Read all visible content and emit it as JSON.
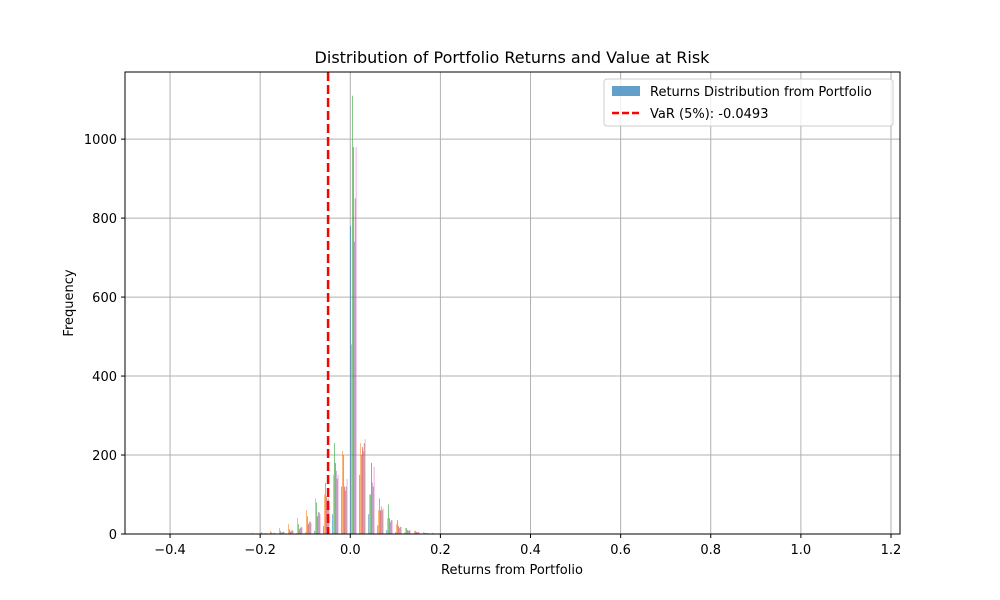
{
  "chart_data": {
    "type": "bar",
    "title": "Distribution of Portfolio Returns and Value at Risk",
    "xlabel": "Returns from Portfolio",
    "ylabel": "Frequency",
    "xlim": [
      -0.5,
      1.22
    ],
    "ylim": [
      0,
      1170
    ],
    "xticks": [
      -0.4,
      -0.2,
      0.0,
      0.2,
      0.4,
      0.6,
      0.8,
      1.0,
      1.2
    ],
    "xtick_labels": [
      "−0.4",
      "−0.2",
      "0.0",
      "0.2",
      "0.4",
      "0.6",
      "0.8",
      "1.0",
      "1.2"
    ],
    "yticks": [
      0,
      200,
      400,
      600,
      800,
      1000
    ],
    "ytick_labels": [
      "0",
      "200",
      "400",
      "600",
      "800",
      "1000"
    ],
    "grid": true,
    "legend_position": "top-right",
    "histogram": {
      "bin_edges": [
        -0.46,
        -0.44,
        -0.42,
        -0.4,
        -0.38,
        -0.36,
        -0.34,
        -0.32,
        -0.3,
        -0.28,
        -0.26,
        -0.24,
        -0.22,
        -0.2,
        -0.18,
        -0.16,
        -0.14,
        -0.12,
        -0.1,
        -0.08,
        -0.06,
        -0.04,
        -0.02,
        0.0,
        0.02,
        0.04,
        0.06,
        0.08,
        0.1,
        0.12,
        0.14,
        0.16,
        0.18,
        0.2,
        0.22,
        0.24,
        0.26,
        0.28,
        0.3,
        0.32,
        0.34,
        0.36,
        0.38,
        0.4,
        0.42,
        0.44,
        0.46,
        0.48,
        0.5
      ],
      "colors": [
        "#1f77b4",
        "#ff7f0e",
        "#2ca02c",
        "#d62728",
        "#9467bd",
        "#8c564b",
        "#e377c2",
        "#7f7f7f",
        "#bcbd22",
        "#17becf"
      ],
      "counts": [
        [
          0,
          0,
          0,
          0,
          0,
          0,
          0,
          0,
          0,
          0,
          0,
          0,
          0,
          0,
          0,
          0,
          1,
          2,
          4,
          8,
          20,
          50,
          120,
          780,
          150,
          50,
          22,
          10,
          5,
          3,
          2,
          1,
          1,
          0,
          0,
          0,
          0,
          0,
          0,
          0,
          0,
          0,
          0,
          0,
          0,
          0,
          0,
          0
        ],
        [
          0,
          0,
          0,
          0,
          0,
          0,
          0,
          0,
          0,
          0,
          2,
          1,
          3,
          5,
          8,
          15,
          25,
          40,
          60,
          90,
          100,
          150,
          210,
          480,
          230,
          100,
          60,
          40,
          25,
          15,
          8,
          5,
          3,
          2,
          1,
          1,
          0,
          0,
          0,
          0,
          0,
          0,
          0,
          0,
          0,
          0,
          0,
          0
        ],
        [
          0,
          0,
          0,
          0,
          0,
          0,
          0,
          0,
          0,
          0,
          0,
          0,
          1,
          2,
          4,
          8,
          12,
          25,
          45,
          80,
          130,
          230,
          200,
          1110,
          200,
          100,
          90,
          75,
          35,
          15,
          8,
          3,
          2,
          1,
          0,
          0,
          0,
          0,
          0,
          0,
          0,
          0,
          0,
          0,
          0,
          0,
          0,
          0
        ],
        [
          0,
          0,
          0,
          0,
          0,
          0,
          0,
          0,
          0,
          0,
          0,
          0,
          0,
          0,
          1,
          3,
          6,
          12,
          25,
          45,
          95,
          180,
          120,
          980,
          220,
          180,
          60,
          40,
          20,
          10,
          5,
          2,
          1,
          0,
          0,
          0,
          0,
          0,
          0,
          0,
          0,
          0,
          0,
          0,
          0,
          0,
          0,
          0
        ],
        [
          0,
          0,
          0,
          0,
          0,
          0,
          0,
          0,
          0,
          0,
          0,
          0,
          0,
          1,
          2,
          4,
          8,
          15,
          30,
          55,
          85,
          160,
          110,
          740,
          210,
          130,
          70,
          30,
          15,
          8,
          4,
          2,
          1,
          0,
          0,
          0,
          0,
          0,
          0,
          0,
          0,
          0,
          0,
          0,
          0,
          0,
          0,
          0
        ],
        [
          0,
          0,
          0,
          0,
          0,
          0,
          0,
          0,
          0,
          0,
          0,
          0,
          1,
          2,
          3,
          6,
          10,
          18,
          32,
          55,
          90,
          140,
          120,
          850,
          230,
          120,
          60,
          35,
          18,
          10,
          5,
          2,
          1,
          1,
          0,
          0,
          0,
          0,
          0,
          0,
          0,
          0,
          0,
          0,
          0,
          0,
          0,
          0
        ],
        [
          0,
          0,
          0,
          0,
          0,
          0,
          0,
          0,
          0,
          0,
          0,
          0,
          0,
          1,
          2,
          5,
          8,
          16,
          28,
          50,
          85,
          150,
          140,
          980,
          240,
          170,
          65,
          35,
          18,
          9,
          4,
          2,
          1,
          0,
          0,
          0,
          0,
          0,
          0,
          0,
          0,
          0,
          0,
          0,
          0,
          0,
          0,
          0
        ],
        [
          0,
          0,
          0,
          0,
          0,
          0,
          0,
          0,
          0,
          0,
          0,
          0,
          0,
          0,
          0,
          0,
          0,
          0,
          0,
          0,
          0,
          0,
          0,
          0,
          0,
          0,
          0,
          0,
          0,
          0,
          0,
          0,
          0,
          0,
          0,
          0,
          0,
          0,
          0,
          0,
          0,
          0,
          0,
          0,
          0,
          0,
          0,
          0
        ],
        [
          0,
          0,
          0,
          0,
          0,
          0,
          0,
          0,
          0,
          0,
          0,
          0,
          0,
          0,
          0,
          0,
          0,
          0,
          0,
          0,
          0,
          0,
          0,
          0,
          0,
          0,
          0,
          0,
          0,
          0,
          0,
          0,
          0,
          0,
          0,
          0,
          0,
          0,
          0,
          0,
          0,
          0,
          0,
          0,
          0,
          0,
          0,
          0
        ],
        [
          0,
          0,
          0,
          0,
          0,
          0,
          0,
          0,
          0,
          0,
          0,
          0,
          0,
          0,
          0,
          0,
          0,
          0,
          0,
          0,
          0,
          0,
          0,
          0,
          0,
          0,
          0,
          0,
          0,
          0,
          0,
          0,
          0,
          0,
          0,
          0,
          0,
          0,
          0,
          0,
          0,
          0,
          0,
          0,
          0,
          0,
          0,
          0
        ]
      ]
    },
    "var_line": {
      "x": -0.0493,
      "color": "#ff0000",
      "style": "dashed"
    },
    "legend": [
      {
        "label": "Returns Distribution from Portfolio",
        "kind": "patch",
        "color": "#1f77b4"
      },
      {
        "label": "VaR (5%): -0.0493",
        "kind": "dashed-line",
        "color": "#ff0000"
      }
    ]
  }
}
